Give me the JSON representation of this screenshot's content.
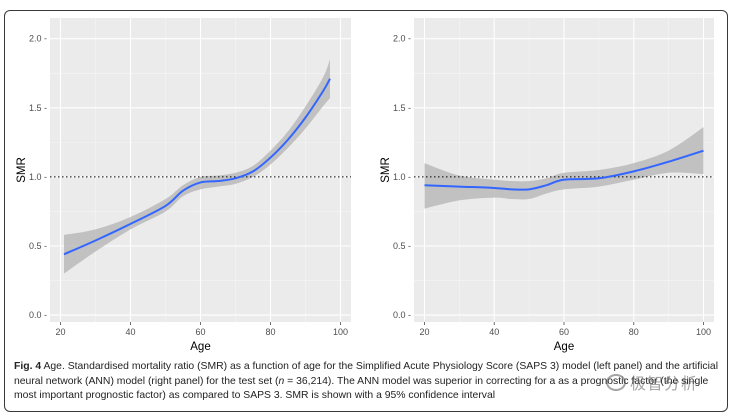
{
  "figure": {
    "caption": {
      "label": "Fig. 4",
      "part1": " Age. Standardised mortality ratio (SMR) as a function of age for the Simplified Acute Physiology Score (SAPS 3) model (left panel) and the artificial neural network (ANN) model (right panel) for the test set (",
      "n_symbol": "n",
      "part2": " = 36,214). The ANN model was superior in correcting for a",
      "part3": " as a prognostic factor (the single most important prognostic factor) as compared to SAPS 3. SMR is shown with a 95% confidence interval"
    },
    "watermark": "极智分析"
  },
  "chart_data": [
    {
      "type": "line",
      "panel": "left",
      "xlabel": "Age",
      "ylabel": "SMR",
      "xlim": [
        17,
        103
      ],
      "ylim": [
        -0.05,
        2.15
      ],
      "xticks": [
        20,
        40,
        60,
        80,
        100
      ],
      "xtick_labels": [
        "20",
        "40",
        "60",
        "80",
        "100"
      ],
      "yticks": [
        0,
        0.5,
        1,
        1.5,
        2
      ],
      "ytick_labels": [
        "0.0 -",
        "0.5 -",
        "1.0 -",
        "1.5 -",
        "2.0 -"
      ],
      "reference_line": 1.0,
      "grid": true,
      "colors": {
        "line": "#3366ff",
        "band": "#b3b3b3",
        "panel": "#ebebeb"
      },
      "x": [
        21,
        30,
        40,
        50,
        55,
        60,
        65,
        70,
        75,
        80,
        85,
        90,
        95,
        97
      ],
      "y": [
        0.44,
        0.54,
        0.66,
        0.79,
        0.9,
        0.96,
        0.97,
        0.99,
        1.04,
        1.14,
        1.27,
        1.43,
        1.62,
        1.71
      ],
      "lower": [
        0.3,
        0.46,
        0.62,
        0.75,
        0.86,
        0.91,
        0.93,
        0.95,
        1.0,
        1.09,
        1.21,
        1.35,
        1.51,
        1.57
      ],
      "upper": [
        0.58,
        0.62,
        0.71,
        0.84,
        0.94,
        1.0,
        1.01,
        1.03,
        1.08,
        1.19,
        1.33,
        1.51,
        1.72,
        1.85
      ]
    },
    {
      "type": "line",
      "panel": "right",
      "xlabel": "Age",
      "ylabel": "SMR",
      "xlim": [
        17,
        103
      ],
      "ylim": [
        -0.05,
        2.15
      ],
      "xticks": [
        20,
        40,
        60,
        80,
        100
      ],
      "xtick_labels": [
        "20",
        "40",
        "60",
        "80",
        "100"
      ],
      "yticks": [
        0,
        0.5,
        1,
        1.5,
        2
      ],
      "ytick_labels": [
        "0.0 -",
        "0.5 -",
        "1.0 -",
        "1.5 -",
        "2.0 -"
      ],
      "reference_line": 1.0,
      "grid": true,
      "colors": {
        "line": "#3366ff",
        "band": "#b3b3b3",
        "panel": "#ebebeb"
      },
      "x": [
        20,
        30,
        40,
        45,
        50,
        55,
        60,
        70,
        80,
        90,
        100
      ],
      "y": [
        0.94,
        0.93,
        0.92,
        0.91,
        0.91,
        0.94,
        0.98,
        0.99,
        1.04,
        1.11,
        1.19
      ],
      "lower": [
        0.77,
        0.83,
        0.85,
        0.84,
        0.84,
        0.88,
        0.91,
        0.93,
        0.98,
        1.03,
        1.02
      ],
      "upper": [
        1.1,
        1.01,
        0.98,
        0.97,
        0.97,
        0.99,
        1.03,
        1.05,
        1.1,
        1.19,
        1.36
      ]
    }
  ]
}
